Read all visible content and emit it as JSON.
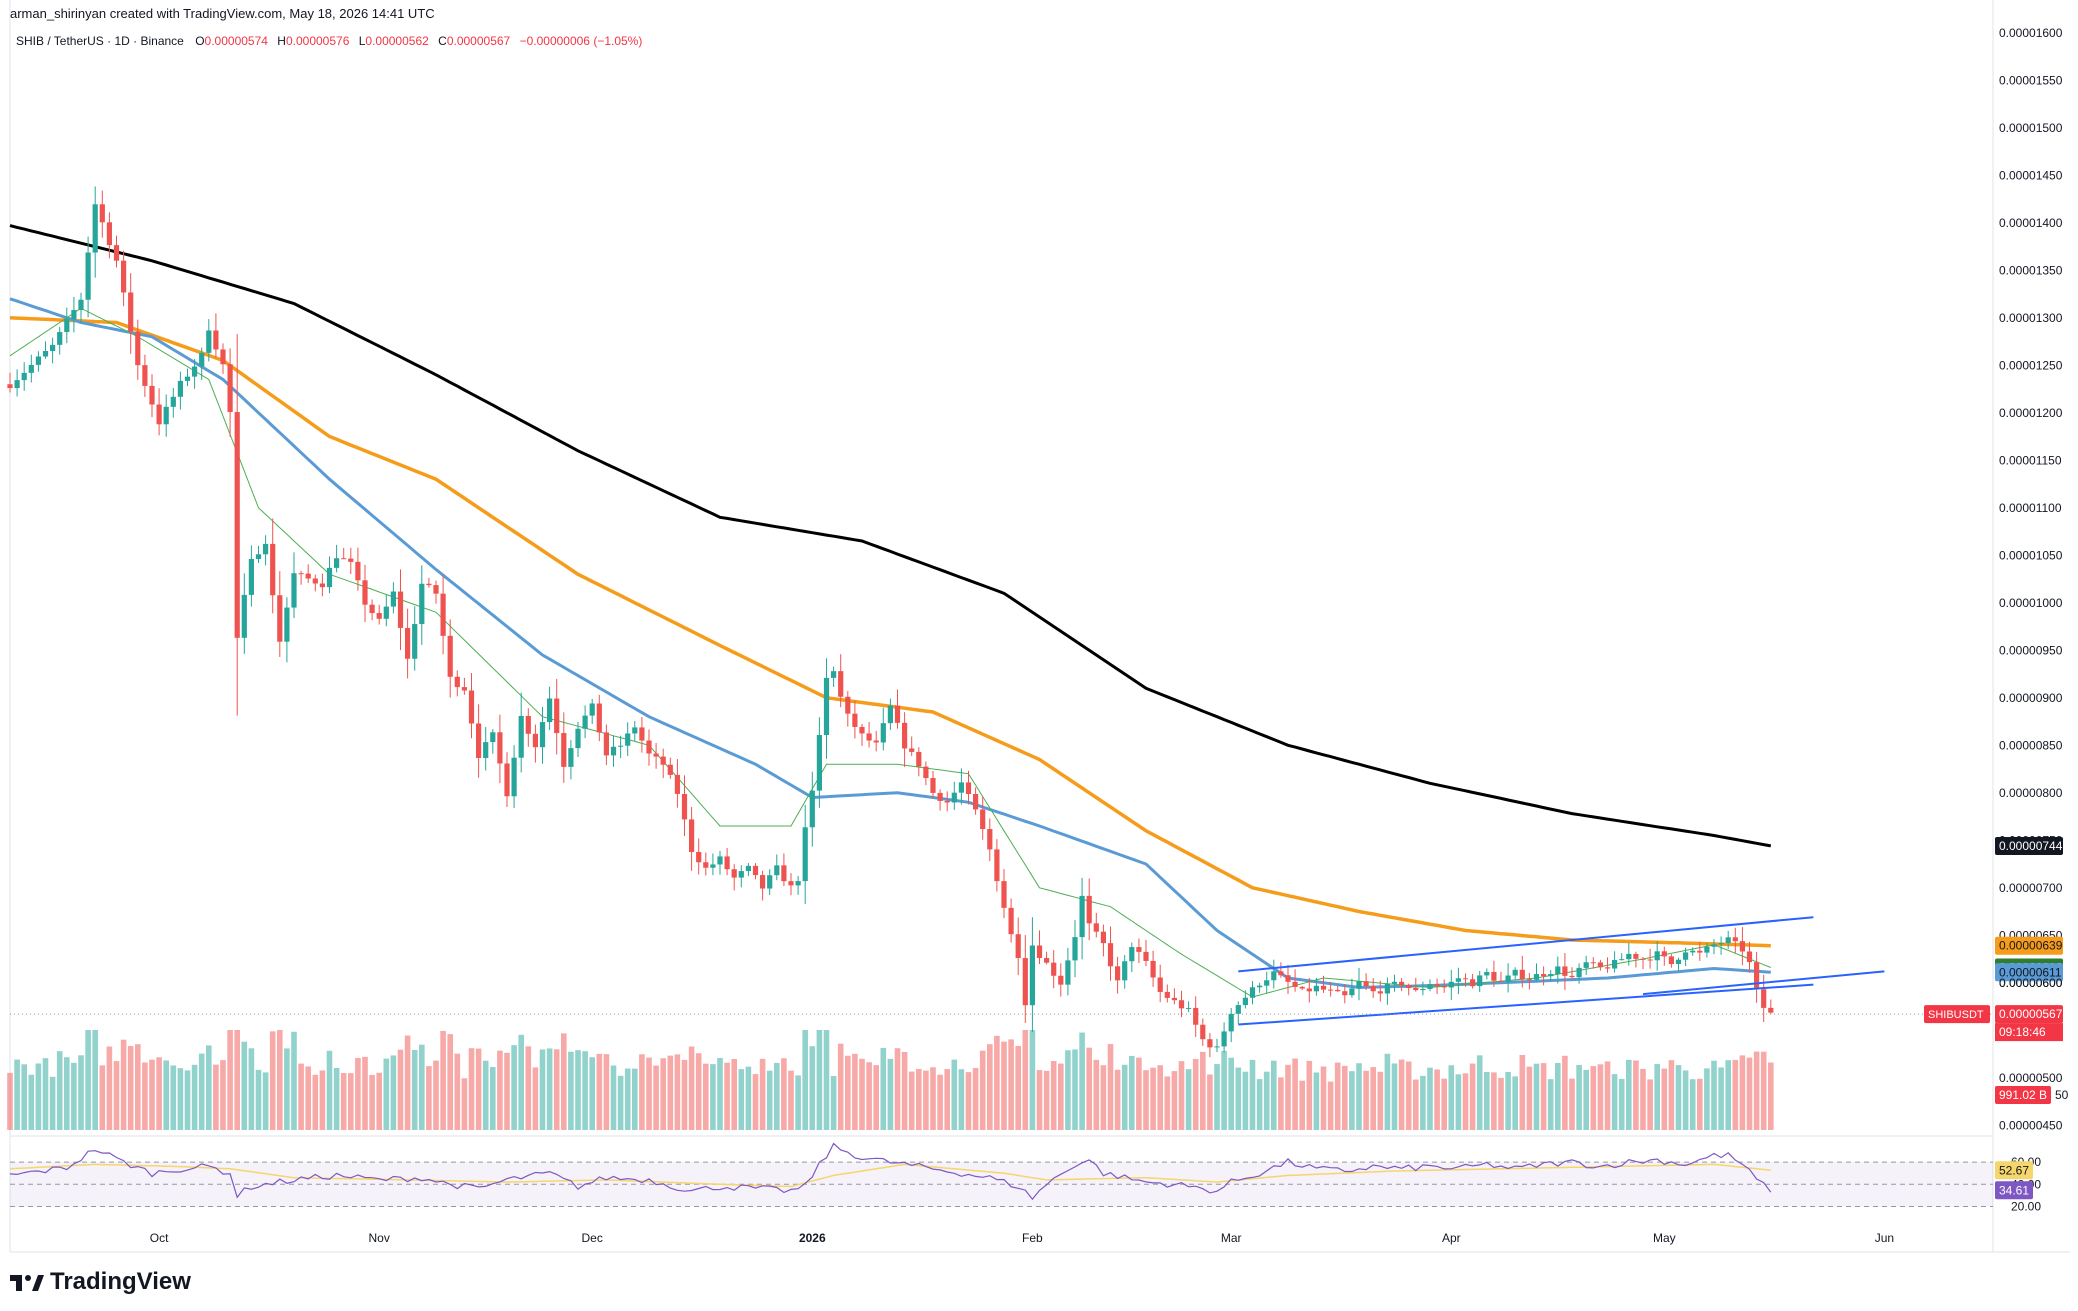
{
  "header": {
    "credit": "arman_shirinyan created with TradingView.com, May 18, 2026 14:41 UTC"
  },
  "legend": {
    "symbol": "SHIB / TetherUS · 1D · Binance",
    "open_label": "O",
    "open": "0.00000574",
    "high_label": "H",
    "high": "0.00000576",
    "low_label": "L",
    "low": "0.00000562",
    "close_label": "C",
    "close": "0.00000567",
    "change": "−0.00000006 (−1.05%)"
  },
  "brand": {
    "name": "TradingView"
  },
  "colors": {
    "up": "#26a69a",
    "down": "#ef5350",
    "ma200": "#000000",
    "ma100": "#f59c1a",
    "ma50": "#5b9bd5",
    "ma20": "#4caf50",
    "channel": "#2962ff",
    "rsi": "#7e57c2",
    "rsi_ma": "#f5d66b"
  },
  "chart_data": {
    "type": "candlestick",
    "symbol": "SHIBUSDT",
    "timeframe": "1D",
    "ylim": [
      4.5e-06,
      1.61e-05
    ],
    "y_tick_labels": [
      "0.00001600",
      "0.00001550",
      "0.00001500",
      "0.00001450",
      "0.00001400",
      "0.00001350",
      "0.00001300",
      "0.00001250",
      "0.00001200",
      "0.00001150",
      "0.00001100",
      "0.00001050",
      "0.00001000",
      "0.00000950",
      "0.00000900",
      "0.00000850",
      "0.00000800",
      "0.00000750",
      "0.00000700",
      "0.00000650",
      "0.00000600",
      "0.00000550",
      "0.00000500",
      "0.00000450"
    ],
    "y_tick_values": [
      16.0,
      15.5,
      15.0,
      14.5,
      14.0,
      13.5,
      13.0,
      12.5,
      12.0,
      11.5,
      11.0,
      10.5,
      10.0,
      9.5,
      9.0,
      8.5,
      8.0,
      7.5,
      7.0,
      6.5,
      6.0,
      5.5,
      5.0,
      4.5
    ],
    "x_tick_labels": [
      {
        "label": "Oct",
        "day": 21
      },
      {
        "label": "Nov",
        "day": 52
      },
      {
        "label": "Dec",
        "day": 82
      },
      {
        "label": "2026",
        "day": 113
      },
      {
        "label": "Feb",
        "day": 144
      },
      {
        "label": "Mar",
        "day": 172
      },
      {
        "label": "Apr",
        "day": 203
      },
      {
        "label": "May",
        "day": 233
      },
      {
        "label": "Jun",
        "day": 264
      }
    ],
    "price_keypoints": [
      [
        0,
        12.3
      ],
      [
        6,
        12.7
      ],
      [
        10,
        13.2
      ],
      [
        12,
        14.2
      ],
      [
        15,
        13.6
      ],
      [
        18,
        12.5
      ],
      [
        21,
        11.9
      ],
      [
        24,
        12.3
      ],
      [
        27,
        12.6
      ],
      [
        28,
        12.9
      ],
      [
        30,
        12.5
      ],
      [
        31,
        12.0
      ],
      [
        32,
        9.6
      ],
      [
        34,
        10.5
      ],
      [
        36,
        10.6
      ],
      [
        38,
        9.6
      ],
      [
        40,
        10.3
      ],
      [
        44,
        10.2
      ],
      [
        46,
        10.5
      ],
      [
        48,
        10.4
      ],
      [
        50,
        10.0
      ],
      [
        52,
        9.8
      ],
      [
        54,
        10.1
      ],
      [
        56,
        9.4
      ],
      [
        58,
        10.2
      ],
      [
        60,
        10.1
      ],
      [
        62,
        9.2
      ],
      [
        64,
        9.1
      ],
      [
        66,
        8.4
      ],
      [
        68,
        8.6
      ],
      [
        70,
        8.0
      ],
      [
        72,
        8.8
      ],
      [
        74,
        8.5
      ],
      [
        76,
        9.0
      ],
      [
        78,
        8.3
      ],
      [
        80,
        8.7
      ],
      [
        82,
        8.9
      ],
      [
        84,
        8.4
      ],
      [
        86,
        8.5
      ],
      [
        88,
        8.7
      ],
      [
        90,
        8.4
      ],
      [
        92,
        8.3
      ],
      [
        94,
        8.0
      ],
      [
        96,
        7.4
      ],
      [
        98,
        7.2
      ],
      [
        100,
        7.3
      ],
      [
        102,
        7.1
      ],
      [
        104,
        7.2
      ],
      [
        106,
        7.0
      ],
      [
        108,
        7.2
      ],
      [
        110,
        7.0
      ],
      [
        111,
        7.1
      ],
      [
        112,
        7.6
      ],
      [
        113,
        8.0
      ],
      [
        115,
        9.2
      ],
      [
        116,
        9.3
      ],
      [
        117,
        9.0
      ],
      [
        118,
        8.8
      ],
      [
        120,
        8.6
      ],
      [
        122,
        8.5
      ],
      [
        124,
        8.9
      ],
      [
        126,
        8.5
      ],
      [
        128,
        8.3
      ],
      [
        130,
        8.0
      ],
      [
        132,
        7.9
      ],
      [
        134,
        8.1
      ],
      [
        136,
        7.8
      ],
      [
        138,
        7.4
      ],
      [
        140,
        6.8
      ],
      [
        141,
        6.5
      ],
      [
        142,
        6.3
      ],
      [
        143,
        5.8
      ],
      [
        144,
        6.4
      ],
      [
        146,
        6.2
      ],
      [
        148,
        6.0
      ],
      [
        150,
        6.5
      ],
      [
        151,
        6.9
      ],
      [
        152,
        6.6
      ],
      [
        154,
        6.4
      ],
      [
        156,
        6.0
      ],
      [
        158,
        6.4
      ],
      [
        160,
        6.2
      ],
      [
        162,
        5.9
      ],
      [
        164,
        5.8
      ],
      [
        166,
        5.7
      ],
      [
        168,
        5.4
      ],
      [
        170,
        5.3
      ],
      [
        172,
        5.7
      ],
      [
        174,
        5.85
      ],
      [
        176,
        6.0
      ],
      [
        178,
        6.1
      ],
      [
        180,
        6.0
      ],
      [
        182,
        5.9
      ],
      [
        184,
        5.95
      ],
      [
        186,
        5.9
      ],
      [
        188,
        5.85
      ],
      [
        190,
        6.0
      ],
      [
        192,
        5.9
      ],
      [
        194,
        5.95
      ],
      [
        196,
        6.0
      ],
      [
        198,
        5.9
      ],
      [
        200,
        6.0
      ],
      [
        202,
        5.95
      ],
      [
        204,
        6.05
      ],
      [
        206,
        6.0
      ],
      [
        208,
        6.1
      ],
      [
        210,
        6.0
      ],
      [
        212,
        6.1
      ],
      [
        214,
        6.05
      ],
      [
        216,
        6.1
      ],
      [
        218,
        6.15
      ],
      [
        220,
        6.05
      ],
      [
        222,
        6.2
      ],
      [
        224,
        6.15
      ],
      [
        226,
        6.2
      ],
      [
        228,
        6.3
      ],
      [
        230,
        6.25
      ],
      [
        232,
        6.3
      ],
      [
        234,
        6.2
      ],
      [
        236,
        6.35
      ],
      [
        238,
        6.3
      ],
      [
        240,
        6.4
      ],
      [
        242,
        6.45
      ],
      [
        244,
        6.35
      ],
      [
        245,
        6.2
      ],
      [
        246,
        5.9
      ],
      [
        247,
        5.74
      ],
      [
        248,
        5.67
      ]
    ],
    "ma200_keypoints": [
      [
        0,
        13.97
      ],
      [
        20,
        13.6
      ],
      [
        40,
        13.15
      ],
      [
        60,
        12.4
      ],
      [
        80,
        11.6
      ],
      [
        100,
        10.9
      ],
      [
        120,
        10.65
      ],
      [
        140,
        10.1
      ],
      [
        160,
        9.1
      ],
      [
        180,
        8.5
      ],
      [
        200,
        8.1
      ],
      [
        220,
        7.78
      ],
      [
        240,
        7.55
      ],
      [
        248,
        7.44
      ]
    ],
    "ma100_keypoints": [
      [
        0,
        13.0
      ],
      [
        15,
        12.95
      ],
      [
        30,
        12.55
      ],
      [
        45,
        11.75
      ],
      [
        60,
        11.3
      ],
      [
        80,
        10.3
      ],
      [
        100,
        9.55
      ],
      [
        115,
        9.0
      ],
      [
        130,
        8.85
      ],
      [
        145,
        8.35
      ],
      [
        160,
        7.6
      ],
      [
        175,
        7.0
      ],
      [
        190,
        6.75
      ],
      [
        205,
        6.55
      ],
      [
        220,
        6.45
      ],
      [
        235,
        6.42
      ],
      [
        248,
        6.39
      ]
    ],
    "ma50_keypoints": [
      [
        0,
        13.2
      ],
      [
        10,
        12.95
      ],
      [
        20,
        12.8
      ],
      [
        30,
        12.35
      ],
      [
        45,
        11.3
      ],
      [
        60,
        10.35
      ],
      [
        75,
        9.45
      ],
      [
        90,
        8.8
      ],
      [
        105,
        8.3
      ],
      [
        113,
        7.95
      ],
      [
        125,
        8.0
      ],
      [
        135,
        7.9
      ],
      [
        145,
        7.65
      ],
      [
        160,
        7.25
      ],
      [
        170,
        6.55
      ],
      [
        180,
        6.05
      ],
      [
        190,
        5.95
      ],
      [
        200,
        5.97
      ],
      [
        210,
        6.0
      ],
      [
        225,
        6.05
      ],
      [
        240,
        6.15
      ],
      [
        248,
        6.11
      ]
    ],
    "ma20_keypoints": [
      [
        0,
        12.6
      ],
      [
        10,
        13.1
      ],
      [
        18,
        12.8
      ],
      [
        28,
        12.35
      ],
      [
        35,
        11.0
      ],
      [
        45,
        10.3
      ],
      [
        60,
        9.9
      ],
      [
        75,
        8.8
      ],
      [
        90,
        8.5
      ],
      [
        100,
        7.65
      ],
      [
        110,
        7.65
      ],
      [
        115,
        8.3
      ],
      [
        125,
        8.3
      ],
      [
        135,
        8.2
      ],
      [
        145,
        7.0
      ],
      [
        155,
        6.8
      ],
      [
        165,
        6.3
      ],
      [
        175,
        5.85
      ],
      [
        185,
        6.05
      ],
      [
        200,
        5.95
      ],
      [
        215,
        6.05
      ],
      [
        230,
        6.25
      ],
      [
        240,
        6.4
      ],
      [
        248,
        6.16
      ]
    ],
    "channel": [
      {
        "name": "upper",
        "from": [
          173,
          6.12
        ],
        "to": [
          254,
          6.69
        ]
      },
      {
        "name": "lower",
        "from": [
          173,
          5.56
        ],
        "to": [
          254,
          5.98
        ]
      },
      {
        "name": "breakdown",
        "from": [
          230,
          5.88
        ],
        "to": [
          264,
          6.12
        ]
      }
    ],
    "price_labels": [
      {
        "value": "0.00000744",
        "y": 7.44,
        "bg": "#131722",
        "fg": "#ffffff"
      },
      {
        "value": "0.00000639",
        "y": 6.39,
        "bg": "#f59c1a",
        "fg": "#131722"
      },
      {
        "value": "0.00000616",
        "y": 6.16,
        "bg": "#2e7d32",
        "fg": "#ffffff"
      },
      {
        "value": "0.00000611",
        "y": 6.11,
        "bg": "#5b9bd5",
        "fg": "#131722"
      },
      {
        "value": "0.00000600",
        "y": 6.0,
        "bg": "#ffffff",
        "fg": "#131722"
      },
      {
        "value": "0.00000567",
        "y": 5.67,
        "bg": "#f23645",
        "fg": "#ffffff"
      }
    ],
    "current_price": {
      "symbol": "SHIBUSDT",
      "value": "0.00000567",
      "countdown": "09:18:46"
    },
    "volume_label": "991.02 B",
    "volume_tick_label": "50",
    "rsi": {
      "value": "34.61",
      "ma_value": "52.67",
      "levels": [
        {
          "label": "60.00",
          "value": 60
        },
        {
          "label": "40.00",
          "value": 40
        },
        {
          "label": "20.00",
          "value": 20
        }
      ],
      "ylim": [
        15,
        80
      ],
      "keypoints": [
        [
          0,
          48
        ],
        [
          8,
          55
        ],
        [
          12,
          72
        ],
        [
          16,
          60
        ],
        [
          20,
          50
        ],
        [
          24,
          54
        ],
        [
          28,
          56
        ],
        [
          31,
          50
        ],
        [
          32,
          30
        ],
        [
          34,
          38
        ],
        [
          40,
          44
        ],
        [
          46,
          48
        ],
        [
          52,
          44
        ],
        [
          58,
          46
        ],
        [
          62,
          40
        ],
        [
          66,
          36
        ],
        [
          70,
          44
        ],
        [
          76,
          50
        ],
        [
          80,
          38
        ],
        [
          84,
          46
        ],
        [
          90,
          44
        ],
        [
          96,
          34
        ],
        [
          100,
          38
        ],
        [
          106,
          36
        ],
        [
          110,
          34
        ],
        [
          112,
          38
        ],
        [
          114,
          58
        ],
        [
          116,
          74
        ],
        [
          120,
          64
        ],
        [
          126,
          58
        ],
        [
          132,
          52
        ],
        [
          138,
          46
        ],
        [
          142,
          38
        ],
        [
          144,
          28
        ],
        [
          146,
          40
        ],
        [
          150,
          58
        ],
        [
          152,
          62
        ],
        [
          154,
          50
        ],
        [
          160,
          42
        ],
        [
          164,
          40
        ],
        [
          168,
          36
        ],
        [
          170,
          34
        ],
        [
          172,
          42
        ],
        [
          176,
          50
        ],
        [
          180,
          60
        ],
        [
          184,
          54
        ],
        [
          188,
          52
        ],
        [
          192,
          56
        ],
        [
          196,
          54
        ],
        [
          200,
          56
        ],
        [
          204,
          54
        ],
        [
          208,
          58
        ],
        [
          212,
          54
        ],
        [
          216,
          58
        ],
        [
          220,
          60
        ],
        [
          224,
          56
        ],
        [
          228,
          60
        ],
        [
          232,
          62
        ],
        [
          236,
          58
        ],
        [
          240,
          66
        ],
        [
          242,
          66
        ],
        [
          244,
          58
        ],
        [
          246,
          44
        ],
        [
          248,
          35
        ]
      ],
      "ma_keypoints": [
        [
          0,
          54
        ],
        [
          12,
          58
        ],
        [
          24,
          56
        ],
        [
          31,
          54
        ],
        [
          40,
          46
        ],
        [
          56,
          44
        ],
        [
          70,
          42
        ],
        [
          84,
          44
        ],
        [
          100,
          40
        ],
        [
          110,
          38
        ],
        [
          116,
          48
        ],
        [
          126,
          58
        ],
        [
          140,
          50
        ],
        [
          146,
          44
        ],
        [
          160,
          46
        ],
        [
          170,
          42
        ],
        [
          180,
          48
        ],
        [
          195,
          52
        ],
        [
          210,
          54
        ],
        [
          225,
          56
        ],
        [
          240,
          58
        ],
        [
          248,
          52.7
        ]
      ]
    }
  }
}
